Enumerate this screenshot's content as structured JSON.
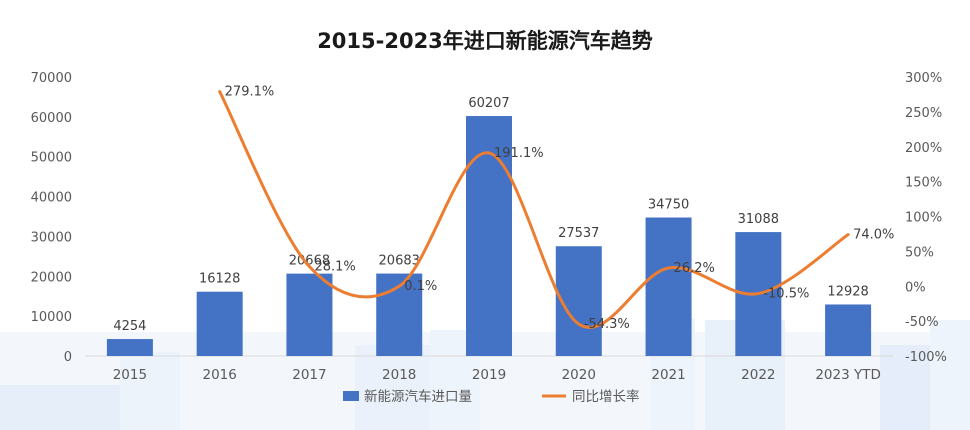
{
  "chart_data": {
    "type": "bar",
    "title": "2015-2023年进口新能源汽车趋势",
    "categories": [
      "2015",
      "2016",
      "2017",
      "2018",
      "2019",
      "2020",
      "2021",
      "2022",
      "2023 YTD"
    ],
    "series": [
      {
        "name": "新能源汽车进口量",
        "type": "bar",
        "axis": "left",
        "color": "#4472C4",
        "values": [
          4254,
          16128,
          20668,
          20683,
          60207,
          27537,
          34750,
          31088,
          12928
        ],
        "labels": [
          "4254",
          "16128",
          "20668",
          "20683",
          "60207",
          "27537",
          "34750",
          "31088",
          "12928"
        ]
      },
      {
        "name": "同比增长率",
        "type": "line",
        "axis": "right",
        "color": "#ED7D31",
        "smooth": true,
        "values": [
          null,
          279.1,
          28.1,
          0.1,
          191.1,
          -54.3,
          26.2,
          -10.5,
          74.0
        ],
        "labels": [
          "",
          "279.1%",
          "28.1%",
          "0.1%",
          "191.1%",
          "-54.3%",
          "26.2%",
          "-10.5%",
          "74.0%"
        ]
      }
    ],
    "y_left": {
      "ylim": [
        0,
        70000
      ],
      "ticks": [
        "0",
        "10000",
        "20000",
        "30000",
        "40000",
        "50000",
        "60000",
        "70000"
      ]
    },
    "y_right": {
      "ylim": [
        -100,
        300
      ],
      "ticks": [
        "-100%",
        "-50%",
        "0%",
        "50%",
        "100%",
        "150%",
        "200%",
        "250%",
        "300%"
      ]
    },
    "grid": false,
    "legend_position": "bottom"
  }
}
